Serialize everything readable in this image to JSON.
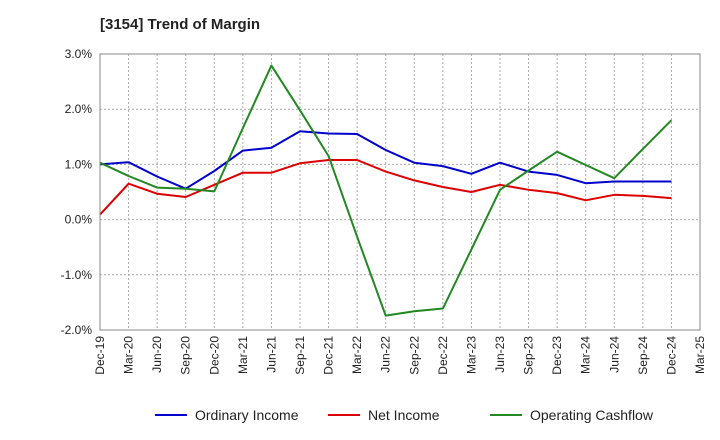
{
  "chart_data": {
    "type": "line",
    "title": "[3154]  Trend of Margin",
    "xlabel": "",
    "ylabel": "",
    "x": [
      "Dec-19",
      "Mar-20",
      "Jun-20",
      "Sep-20",
      "Dec-20",
      "Mar-21",
      "Jun-21",
      "Sep-21",
      "Dec-21",
      "Mar-22",
      "Jun-22",
      "Sep-22",
      "Dec-22",
      "Mar-23",
      "Jun-23",
      "Sep-23",
      "Dec-23",
      "Mar-24",
      "Jun-24",
      "Sep-24",
      "Dec-24",
      "Mar-25"
    ],
    "ylim": [
      -2.0,
      3.0
    ],
    "yticks": [
      -2.0,
      -1.0,
      0.0,
      1.0,
      2.0,
      3.0
    ],
    "ytick_labels": [
      "-2.0%",
      "-1.0%",
      "0.0%",
      "1.0%",
      "2.0%",
      "3.0%"
    ],
    "grid": true,
    "legend_position": "bottom",
    "series": [
      {
        "name": "Ordinary Income",
        "color": "#0000cc",
        "values": [
          1.0,
          1.04,
          0.78,
          0.56,
          0.88,
          1.25,
          1.3,
          1.6,
          1.56,
          1.55,
          1.26,
          1.03,
          0.97,
          0.83,
          1.03,
          0.87,
          0.81,
          0.66,
          0.69,
          0.69,
          0.69,
          null
        ]
      },
      {
        "name": "Net Income",
        "color": "#dd0000",
        "values": [
          0.09,
          0.65,
          0.47,
          0.41,
          0.63,
          0.85,
          0.85,
          1.02,
          1.08,
          1.08,
          0.87,
          0.71,
          0.59,
          0.5,
          0.63,
          0.54,
          0.48,
          0.35,
          0.45,
          0.43,
          0.39,
          null
        ]
      },
      {
        "name": "Operating Cashflow",
        "color": "#228822",
        "values": [
          1.03,
          0.79,
          0.58,
          0.56,
          0.51,
          1.66,
          2.79,
          1.98,
          1.15,
          -0.31,
          -1.74,
          -1.66,
          -1.61,
          -0.54,
          0.54,
          0.89,
          1.23,
          0.99,
          0.75,
          1.28,
          1.8,
          null
        ]
      }
    ]
  }
}
